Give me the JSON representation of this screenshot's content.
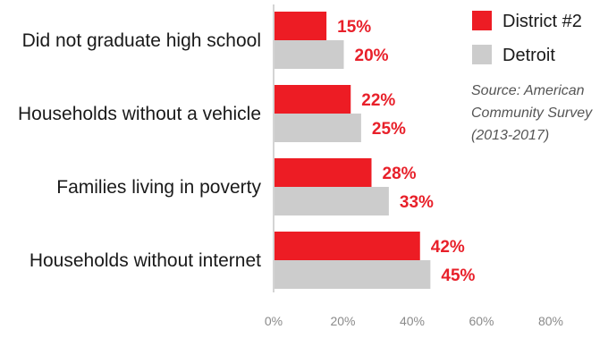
{
  "chart_data": {
    "type": "bar",
    "orientation": "horizontal",
    "categories": [
      "Did not graduate high school",
      "Households without a vehicle",
      "Families living in poverty",
      "Households without internet"
    ],
    "series": [
      {
        "name": "District #2",
        "values": [
          15,
          22,
          28,
          42
        ],
        "labels": [
          "15%",
          "22%",
          "28%",
          "42%"
        ]
      },
      {
        "name": "Detroit",
        "values": [
          20,
          25,
          33,
          45
        ],
        "labels": [
          "20%",
          "25%",
          "33%",
          "45%"
        ]
      }
    ],
    "xlim": [
      0,
      80
    ],
    "ticks": [
      "0%",
      "20%",
      "40%",
      "60%",
      "80%"
    ],
    "grid": false,
    "legend_position": "top-right",
    "note_lines": [
      "Source: American",
      "Community Survey",
      "(2013-2017)"
    ]
  },
  "colors": {
    "District #2": "#ed1c24",
    "Detroit": "#cccccc"
  }
}
